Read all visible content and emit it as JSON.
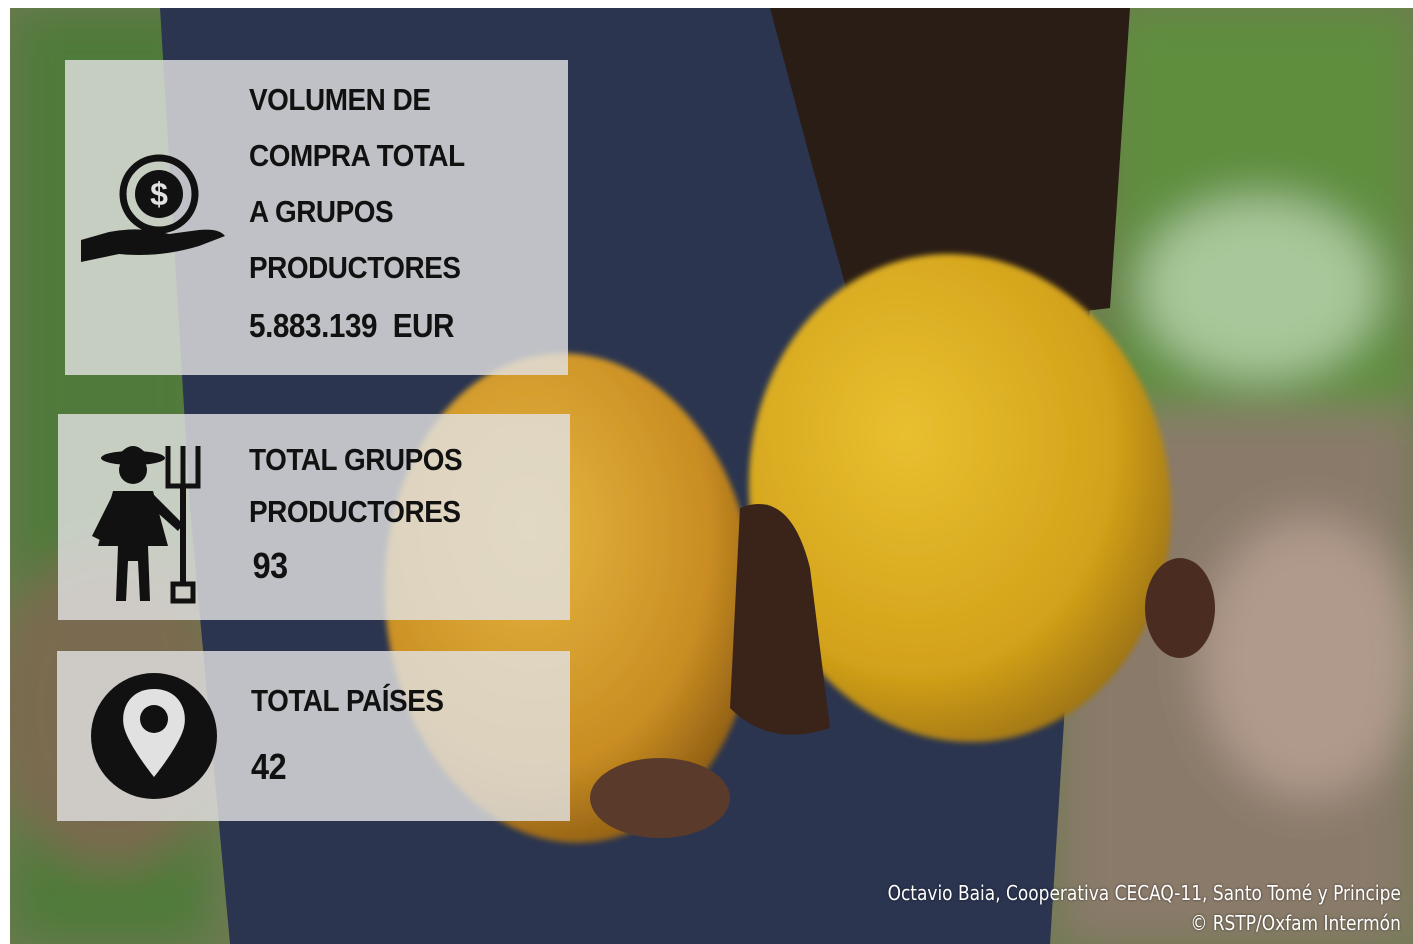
{
  "panels": [
    {
      "title_lines": [
        "VOLUMEN DE",
        "COMPRA TOTAL",
        "A GRUPOS",
        "PRODUCTORES"
      ],
      "value": "5.883.139",
      "unit": "EUR"
    },
    {
      "title_lines": [
        "TOTAL GRUPOS",
        "PRODUCTORES"
      ],
      "value": "93"
    },
    {
      "title_lines": [
        "TOTAL PAÍSES"
      ],
      "value": "42"
    }
  ],
  "caption": {
    "lines": [
      "Octavio Baia, Cooperativa CECAQ-11, Santo Tomé y Principe",
      "© RSTP/Oxfam Intermón"
    ]
  }
}
